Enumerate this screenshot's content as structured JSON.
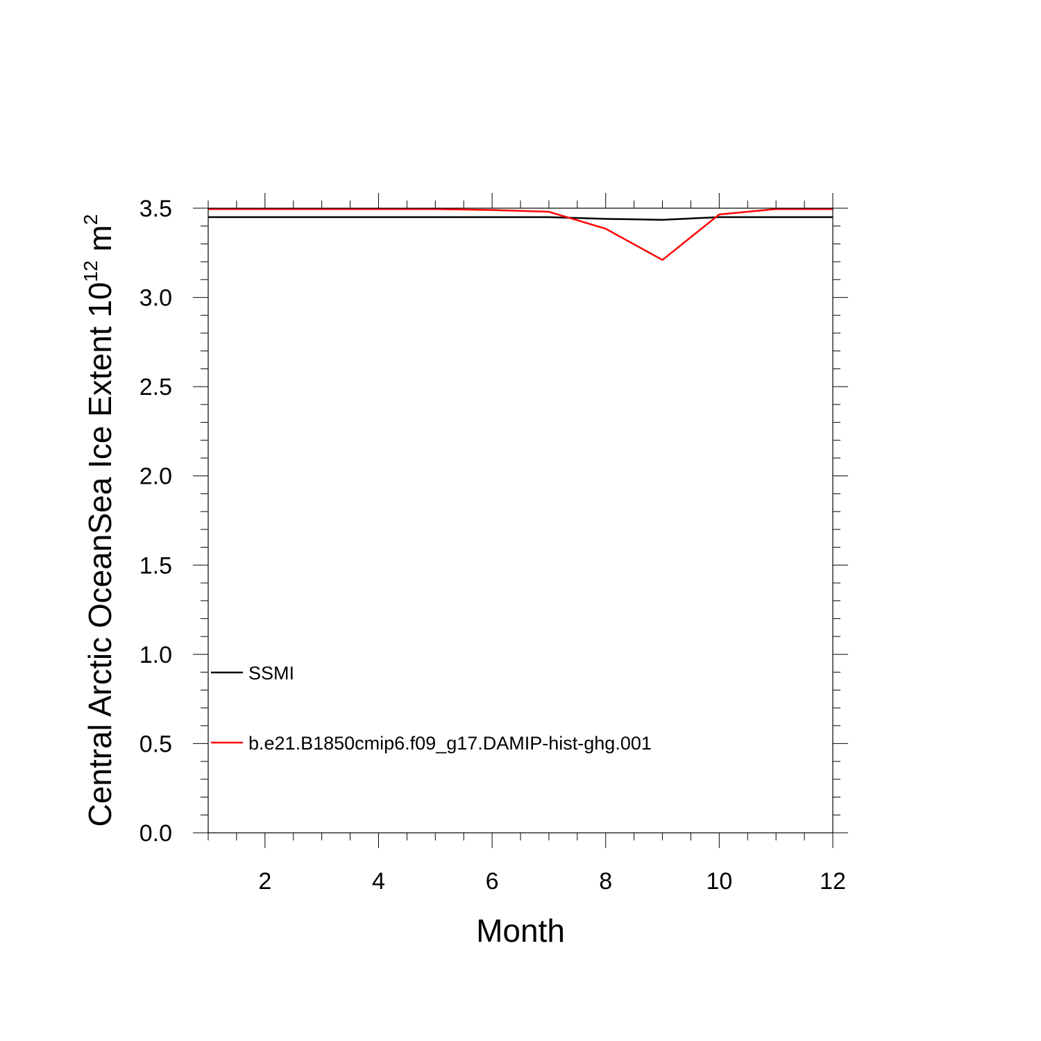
{
  "chart_data": {
    "type": "line",
    "title": "",
    "xlabel": "Month",
    "ylabel": {
      "text": "Central Arctic OceanSea Ice Extent 10",
      "exponent": "12",
      "unit": " m",
      "unit_exponent": "2"
    },
    "xlim": [
      1,
      12
    ],
    "ylim": [
      0.0,
      3.5
    ],
    "x_ticks": [
      2,
      4,
      6,
      8,
      10,
      12
    ],
    "x_tick_labels": [
      "2",
      "4",
      "6",
      "8",
      "10",
      "12"
    ],
    "y_ticks": [
      0.0,
      0.5,
      1.0,
      1.5,
      2.0,
      2.5,
      3.0,
      3.5
    ],
    "y_tick_labels": [
      "0.0",
      "0.5",
      "1.0",
      "1.5",
      "2.0",
      "2.5",
      "3.0",
      "3.5"
    ],
    "grid": false,
    "legend_position": "lower-left",
    "x": [
      1,
      2,
      3,
      4,
      5,
      6,
      7,
      8,
      9,
      10,
      11,
      12
    ],
    "series": [
      {
        "name": "SSMI",
        "color": "#000000",
        "values": [
          3.45,
          3.45,
          3.45,
          3.45,
          3.45,
          3.45,
          3.45,
          3.44,
          3.435,
          3.45,
          3.45,
          3.45
        ]
      },
      {
        "name": "b.e21.B1850cmip6.f09_g17.DAMIP-hist-ghg.001",
        "color": "#ff0000",
        "values": [
          3.495,
          3.495,
          3.495,
          3.495,
          3.495,
          3.49,
          3.48,
          3.385,
          3.21,
          3.465,
          3.495,
          3.495
        ]
      }
    ]
  }
}
